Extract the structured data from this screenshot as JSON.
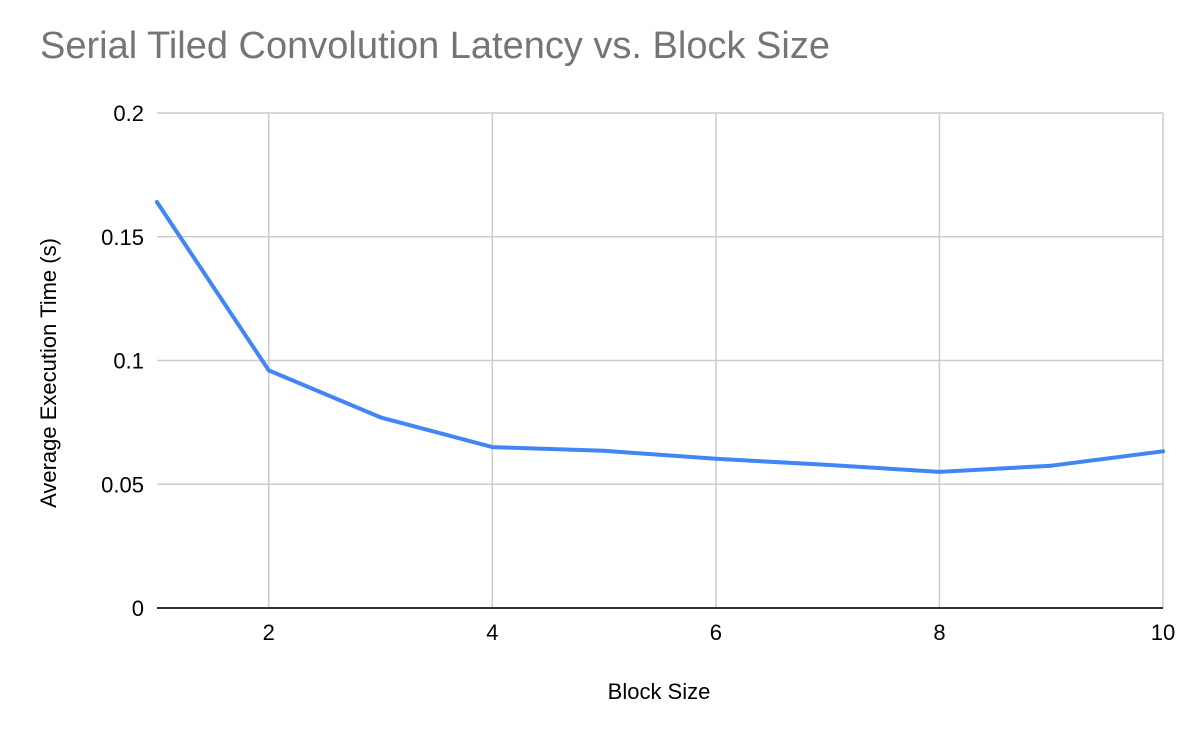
{
  "chart_data": {
    "type": "line",
    "title": "Serial Tiled Convolution Latency vs. Block Size",
    "xlabel": "Block Size",
    "ylabel": "Average Execution Time (s)",
    "x": [
      1,
      2,
      3,
      4,
      5,
      6,
      7,
      8,
      9,
      10
    ],
    "series": [
      {
        "values": [
          0.164,
          0.096,
          0.077,
          0.065,
          0.0635,
          0.0603,
          0.0578,
          0.055,
          0.0575,
          0.0633
        ],
        "color": "#4285F4"
      }
    ],
    "xlim": [
      1,
      10
    ],
    "ylim": [
      0,
      0.2
    ],
    "xticks": [
      2,
      4,
      6,
      8,
      10
    ],
    "yticks": [
      0,
      0.05,
      0.1,
      0.15,
      0.2
    ],
    "xtick_labels": [
      "2",
      "4",
      "6",
      "8",
      "10"
    ],
    "ytick_labels": [
      "0",
      "0.05",
      "0.1",
      "0.15",
      "0.2"
    ],
    "grid": true,
    "legend": "none",
    "colors": {
      "grid": "#CCCCCC",
      "axis": "#333333",
      "title": "#757575",
      "text": "#000000"
    }
  }
}
